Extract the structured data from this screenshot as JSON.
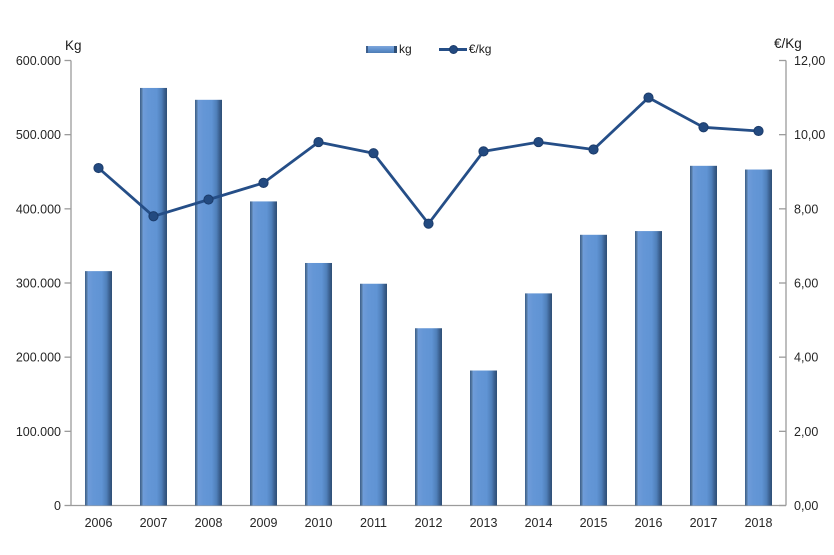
{
  "chart_data": {
    "type": "bar",
    "combo": "bar+line, dual axis",
    "categories": [
      "2006",
      "2007",
      "2008",
      "2009",
      "2010",
      "2011",
      "2012",
      "2013",
      "2014",
      "2015",
      "2016",
      "2017",
      "2018"
    ],
    "series": [
      {
        "name": "kg",
        "type": "bar",
        "axis": "left",
        "values": [
          316000,
          563000,
          547000,
          410000,
          327000,
          299000,
          239000,
          182000,
          286000,
          365000,
          370000,
          458000,
          453000
        ]
      },
      {
        "name": "€/kg",
        "type": "line",
        "axis": "right",
        "values": [
          9.1,
          7.8,
          8.25,
          8.7,
          9.8,
          9.5,
          7.6,
          9.55,
          9.8,
          9.6,
          11.0,
          10.2,
          10.1
        ]
      }
    ],
    "left_axis": {
      "title": "Kg",
      "min": 0,
      "max": 600000,
      "step": 100000,
      "tick_labels": [
        "0",
        "100.000",
        "200.000",
        "300.000",
        "400.000",
        "500.000",
        "600.000"
      ]
    },
    "right_axis": {
      "title": "€/Kg",
      "min": 0,
      "max": 12,
      "step": 2,
      "tick_labels": [
        "0,00",
        "2,00",
        "4,00",
        "6,00",
        "8,00",
        "10,00",
        "12,00"
      ]
    },
    "legend_position": "top-center",
    "grid": false,
    "colors": {
      "line": "#254e87",
      "marker_fill": "#234a80",
      "marker_stroke": "#1c3c6b",
      "axis_line": "#9b9b9b",
      "tick_text": "#262626",
      "bar_gradient": [
        {
          "offset": "0%",
          "color": "#3b5e8c"
        },
        {
          "offset": "6%",
          "color": "#53779f"
        },
        {
          "offset": "12%",
          "color": "#6f9cd9"
        },
        {
          "offset": "30%",
          "color": "#6496d6"
        },
        {
          "offset": "62%",
          "color": "#6094d4"
        },
        {
          "offset": "80%",
          "color": "#4f7fb9"
        },
        {
          "offset": "90%",
          "color": "#3c6292"
        },
        {
          "offset": "100%",
          "color": "#2e4e74"
        }
      ]
    }
  },
  "legend": {
    "kg_label": "kg",
    "eur_label": "€/kg"
  }
}
